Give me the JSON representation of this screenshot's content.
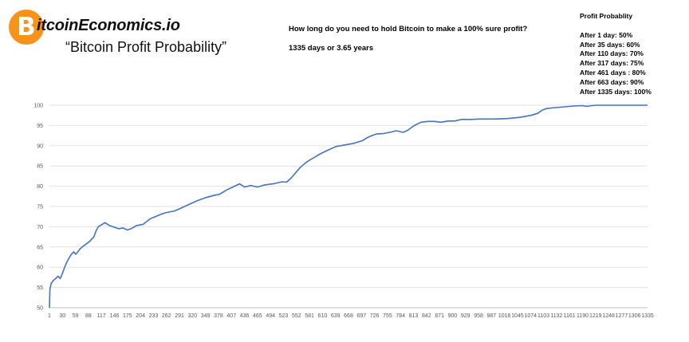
{
  "header": {
    "logo_glyph": "B",
    "brand": "itcoinEconomics.io",
    "subtitle": "“Bitcoin Profit Probability”",
    "question": "How long do you need to hold Bitcoin to make a 100% sure profit?",
    "answer": "1335 days or 3.65 years"
  },
  "legend": {
    "title": "Profit Probablity",
    "items": [
      "After 1 day: 50%",
      "After 35 days: 60%",
      "After 110 days: 70%",
      "After 317 days: 75%",
      "After 461 days : 80%",
      "After 663 days: 90%",
      "After 1335 days: 100%"
    ]
  },
  "chart_data": {
    "type": "line",
    "title": "Bitcoin Profit Probability",
    "xlabel": "",
    "ylabel": "",
    "xlim": [
      1,
      1335
    ],
    "ylim": [
      50,
      100
    ],
    "grid": true,
    "y_ticks": [
      50,
      55,
      60,
      65,
      70,
      75,
      80,
      85,
      90,
      95,
      100
    ],
    "x_ticks": [
      "1",
      "30",
      "59",
      "88",
      "117",
      "146",
      "175",
      "204",
      "233",
      "262",
      "291",
      "320",
      "349",
      "378",
      "407",
      "436",
      "465",
      "494",
      "523",
      "552",
      "581",
      "610",
      "639",
      "668",
      "697",
      "726",
      "755",
      "784",
      "813",
      "842",
      "871",
      "900",
      "929",
      "958",
      "987",
      "1016",
      "1045",
      "1074",
      "1103",
      "1132",
      "1161",
      "1190",
      "1219",
      "1248",
      "1277",
      "1306",
      "1335"
    ],
    "series": [
      {
        "name": "Profit probability (%)",
        "color": "#4472c4",
        "x": [
          1,
          2,
          5,
          10,
          15,
          20,
          25,
          30,
          35,
          40,
          45,
          50,
          55,
          60,
          70,
          80,
          90,
          100,
          105,
          110,
          117,
          125,
          135,
          145,
          155,
          165,
          175,
          185,
          195,
          210,
          225,
          233,
          250,
          262,
          280,
          291,
          310,
          330,
          350,
          370,
          380,
          395,
          410,
          425,
          436,
          450,
          465,
          480,
          500,
          520,
          530,
          540,
          550,
          560,
          575,
          590,
          605,
          620,
          640,
          660,
          680,
          700,
          710,
          720,
          730,
          745,
          760,
          775,
          790,
          800,
          815,
          830,
          845,
          860,
          875,
          890,
          905,
          920,
          940,
          960,
          990,
          1020,
          1050,
          1075,
          1090,
          1100,
          1110,
          1130,
          1150,
          1170,
          1190,
          1200,
          1210,
          1220,
          1240,
          1270,
          1300,
          1335
        ],
        "values": [
          50,
          54.5,
          56,
          56.8,
          57.2,
          57.8,
          57.2,
          58.5,
          60,
          61.3,
          62.3,
          63.2,
          63.8,
          63.2,
          64.6,
          65.5,
          66.3,
          67.5,
          69,
          70,
          70.5,
          71,
          70.3,
          69.9,
          69.5,
          69.7,
          69.2,
          69.6,
          70.3,
          70.6,
          71.9,
          72.3,
          73.1,
          73.5,
          73.9,
          74.4,
          75.4,
          76.4,
          77.2,
          77.8,
          78,
          79,
          79.8,
          80.6,
          79.8,
          80.2,
          79.8,
          80.3,
          80.6,
          81.1,
          81,
          82,
          83.3,
          84.6,
          86,
          87,
          88,
          88.8,
          89.8,
          90.2,
          90.6,
          91.3,
          92,
          92.5,
          92.9,
          93,
          93.3,
          93.7,
          93.3,
          93.8,
          95,
          95.8,
          96,
          96,
          95.8,
          96.1,
          96.1,
          96.5,
          96.5,
          96.6,
          96.6,
          96.7,
          97,
          97.5,
          98,
          98.8,
          99.2,
          99.4,
          99.6,
          99.8,
          99.9,
          99.7,
          99.9,
          100,
          100,
          100,
          100,
          100
        ]
      }
    ]
  }
}
